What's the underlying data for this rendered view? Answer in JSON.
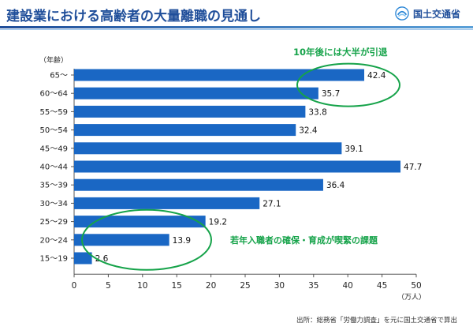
{
  "header": {
    "title": "建設業における高齢者の大量離職の見通し",
    "logo_text": "国土交通省"
  },
  "colors": {
    "bar": "#1a67c4",
    "annotation": "#16a34a",
    "title": "#1f4e9a"
  },
  "chart_data": {
    "type": "bar",
    "orientation": "horizontal",
    "categories": [
      "65～",
      "60～64",
      "55～59",
      "50～54",
      "45～49",
      "40～44",
      "35～39",
      "30～34",
      "25～29",
      "20～24",
      "15～19"
    ],
    "values": [
      42.4,
      35.7,
      33.8,
      32.4,
      39.1,
      47.7,
      36.4,
      27.1,
      19.2,
      13.9,
      2.6
    ],
    "value_labels": [
      "42.4",
      "35.7",
      "33.8",
      "32.4",
      "39.1",
      "47.7",
      "36.4",
      "27.1",
      "19.2",
      "13.9",
      "2.6"
    ],
    "xlim": [
      0,
      50
    ],
    "xticks": [
      0,
      5,
      10,
      15,
      20,
      25,
      30,
      35,
      40,
      45,
      50
    ],
    "ylabel": "（年齢）",
    "xlabel": "（万人）",
    "grid": false,
    "annotations": [
      {
        "text": "10年後には大半が引退",
        "highlights": [
          "65～",
          "60～64"
        ]
      },
      {
        "text": "若年入職者の確保・育成が喫緊の課題",
        "highlights": [
          "25～29",
          "20～24",
          "15～19"
        ]
      }
    ]
  },
  "footer": {
    "source": "出所：総務省「労働力調査」を元に国土交通省で算出"
  }
}
